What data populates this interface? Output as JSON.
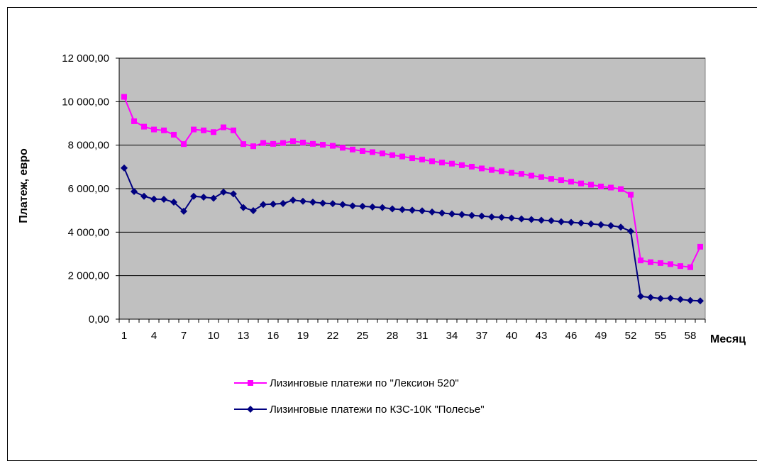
{
  "chart_data": {
    "type": "line",
    "xlabel": "Месяц",
    "ylabel": "Платеж, евро",
    "ylim": [
      0,
      12000
    ],
    "yticks": [
      0,
      2000,
      4000,
      6000,
      8000,
      10000,
      12000
    ],
    "ytick_labels": [
      "0,00",
      "2 000,00",
      "4 000,00",
      "6 000,00",
      "8 000,00",
      "10 000,00",
      "12 000,00"
    ],
    "x": [
      1,
      2,
      3,
      4,
      5,
      6,
      7,
      8,
      9,
      10,
      11,
      12,
      13,
      14,
      15,
      16,
      17,
      18,
      19,
      20,
      21,
      22,
      23,
      24,
      25,
      26,
      27,
      28,
      29,
      30,
      31,
      32,
      33,
      34,
      35,
      36,
      37,
      38,
      39,
      40,
      41,
      42,
      43,
      44,
      45,
      46,
      47,
      48,
      49,
      50,
      51,
      52,
      53,
      54,
      55,
      56,
      57,
      58,
      59
    ],
    "xtick_labels": [
      "1",
      "4",
      "7",
      "10",
      "13",
      "16",
      "19",
      "22",
      "25",
      "28",
      "31",
      "34",
      "37",
      "40",
      "43",
      "46",
      "49",
      "52",
      "55",
      "58"
    ],
    "grid": "horizontal",
    "plot_background": "#c0c0c0",
    "legend_position": "bottom",
    "series": [
      {
        "name": "Лизинговые платежи по \"Лексион 520\"",
        "color": "#ff00ff",
        "marker": "square",
        "values": [
          10220,
          9100,
          8850,
          8720,
          8680,
          8480,
          8050,
          8720,
          8680,
          8600,
          8820,
          8680,
          8050,
          7950,
          8100,
          8060,
          8100,
          8180,
          8120,
          8060,
          8020,
          7970,
          7880,
          7800,
          7730,
          7680,
          7620,
          7540,
          7480,
          7400,
          7340,
          7260,
          7200,
          7150,
          7080,
          7010,
          6930,
          6860,
          6800,
          6730,
          6680,
          6600,
          6530,
          6450,
          6390,
          6320,
          6240,
          6180,
          6100,
          6050,
          5980,
          5720,
          2700,
          2620,
          2580,
          2530,
          2440,
          2390,
          3330
        ]
      },
      {
        "name": "Лизинговые платежи по КЗС-10К \"Полесье\"",
        "color": "#000080",
        "marker": "diamond",
        "values": [
          6950,
          5870,
          5650,
          5520,
          5510,
          5380,
          4960,
          5650,
          5610,
          5560,
          5840,
          5760,
          5130,
          4990,
          5270,
          5290,
          5320,
          5470,
          5420,
          5380,
          5330,
          5310,
          5270,
          5210,
          5190,
          5160,
          5130,
          5070,
          5040,
          5010,
          4980,
          4930,
          4880,
          4840,
          4810,
          4770,
          4740,
          4700,
          4680,
          4650,
          4610,
          4580,
          4550,
          4530,
          4480,
          4450,
          4420,
          4380,
          4340,
          4300,
          4230,
          4040,
          1050,
          1000,
          950,
          960,
          910,
          860,
          840
        ]
      }
    ]
  }
}
